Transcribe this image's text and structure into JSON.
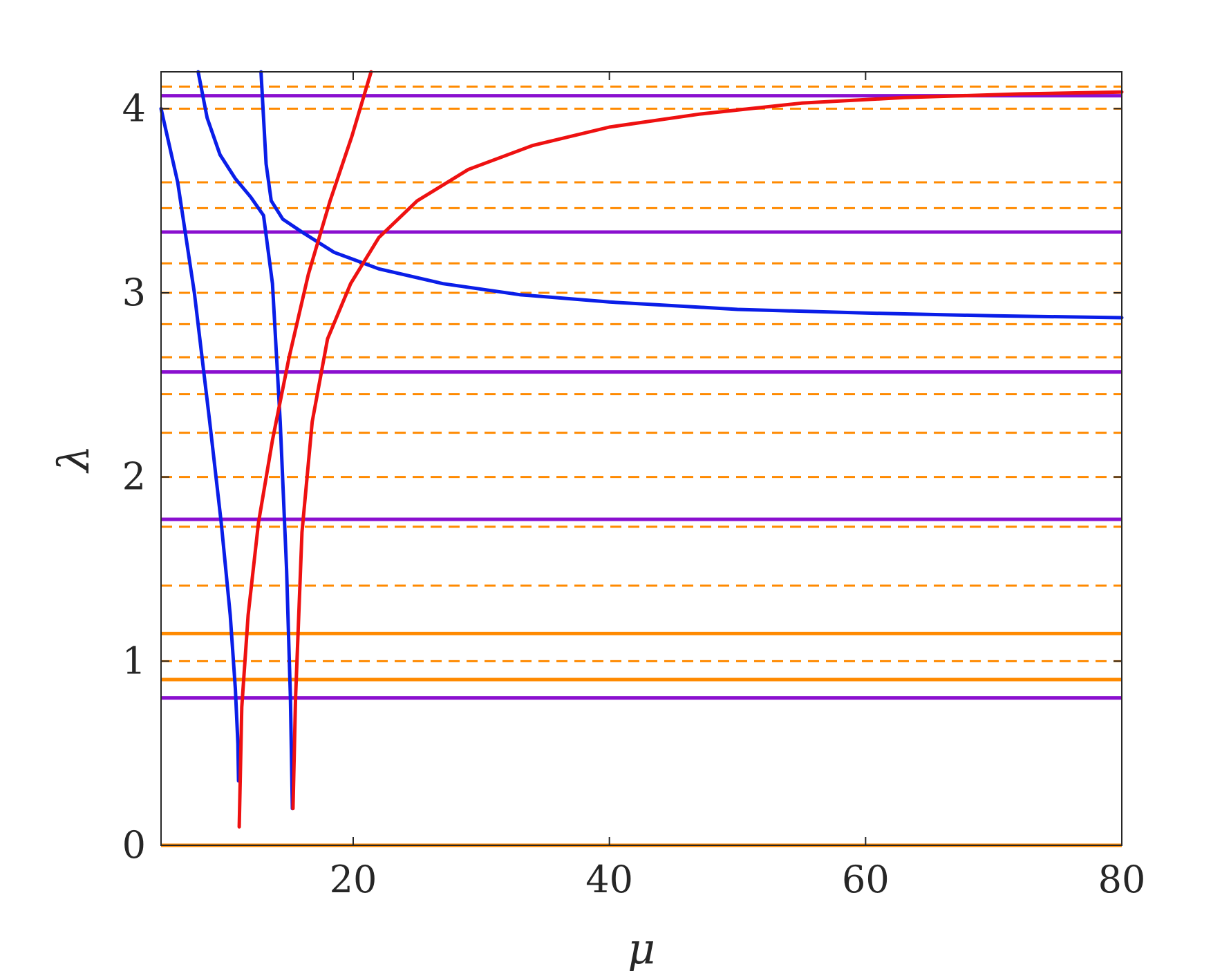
{
  "chart_data": {
    "type": "line",
    "title": "",
    "xlabel": "μ",
    "ylabel": "λ",
    "xlim": [
      5,
      80
    ],
    "ylim": [
      0,
      4.2
    ],
    "xticks": [
      20,
      40,
      60,
      80
    ],
    "xtick_labels": [
      "20",
      "40",
      "60",
      "80"
    ],
    "yticks": [
      0,
      1,
      2,
      3,
      4
    ],
    "ytick_labels": [
      "0",
      "1",
      "2",
      "3",
      "4"
    ],
    "grid": false,
    "legend": "none",
    "colors": {
      "blue": "#0a1ee8",
      "red": "#ee1111",
      "purple": "#8a0fcf",
      "orange": "#ff8a00",
      "axis": "#262626"
    },
    "hlines": [
      {
        "y": 0.0,
        "color": "orange",
        "style": "solid"
      },
      {
        "y": 0.8,
        "color": "purple",
        "style": "solid"
      },
      {
        "y": 0.9,
        "color": "orange",
        "style": "solid"
      },
      {
        "y": 1.0,
        "color": "orange",
        "style": "dashed"
      },
      {
        "y": 1.15,
        "color": "orange",
        "style": "solid"
      },
      {
        "y": 1.41,
        "color": "orange",
        "style": "dashed"
      },
      {
        "y": 1.73,
        "color": "orange",
        "style": "dashed"
      },
      {
        "y": 1.77,
        "color": "purple",
        "style": "solid"
      },
      {
        "y": 2.0,
        "color": "orange",
        "style": "dashed"
      },
      {
        "y": 2.24,
        "color": "orange",
        "style": "dashed"
      },
      {
        "y": 2.45,
        "color": "orange",
        "style": "dashed"
      },
      {
        "y": 2.57,
        "color": "purple",
        "style": "solid"
      },
      {
        "y": 2.65,
        "color": "orange",
        "style": "dashed"
      },
      {
        "y": 2.83,
        "color": "orange",
        "style": "dashed"
      },
      {
        "y": 3.0,
        "color": "orange",
        "style": "dashed"
      },
      {
        "y": 3.16,
        "color": "orange",
        "style": "dashed"
      },
      {
        "y": 3.33,
        "color": "purple",
        "style": "solid"
      },
      {
        "y": 3.46,
        "color": "orange",
        "style": "dashed"
      },
      {
        "y": 3.6,
        "color": "orange",
        "style": "dashed"
      },
      {
        "y": 4.0,
        "color": "orange",
        "style": "dashed"
      },
      {
        "y": 4.07,
        "color": "purple",
        "style": "solid"
      },
      {
        "y": 4.12,
        "color": "orange",
        "style": "dashed"
      }
    ],
    "series": [
      {
        "color": "blue",
        "x": [
          5,
          6.3,
          7.6,
          8.8,
          9.7,
          10.4,
          10.8,
          11.0,
          11.05
        ],
        "y": [
          4.0,
          3.6,
          3.0,
          2.3,
          1.75,
          1.25,
          0.85,
          0.55,
          0.35
        ]
      },
      {
        "color": "blue",
        "x": [
          7.9,
          8.6,
          9.6,
          10.8,
          12.0,
          13.0,
          13.7,
          14.3,
          14.8,
          15.1,
          15.25
        ],
        "y": [
          4.2,
          3.95,
          3.75,
          3.62,
          3.52,
          3.42,
          3.05,
          2.3,
          1.5,
          0.8,
          0.2
        ]
      },
      {
        "color": "blue",
        "x": [
          12.8,
          13.0,
          13.2,
          13.6,
          14.5,
          16.0,
          18.5,
          22,
          27,
          33,
          40,
          50,
          60,
          70,
          80
        ],
        "y": [
          4.2,
          3.95,
          3.7,
          3.5,
          3.4,
          3.33,
          3.22,
          3.13,
          3.05,
          2.99,
          2.95,
          2.91,
          2.89,
          2.875,
          2.865
        ]
      },
      {
        "color": "red",
        "x": [
          11.1,
          11.3,
          11.8,
          12.6,
          13.7,
          15.0,
          16.5,
          18.2,
          19.9,
          21.4
        ],
        "y": [
          0.1,
          0.75,
          1.25,
          1.75,
          2.2,
          2.65,
          3.1,
          3.5,
          3.85,
          4.2
        ]
      },
      {
        "color": "red",
        "x": [
          15.3,
          15.5,
          16.0,
          16.8,
          18.0,
          19.8,
          22,
          25,
          29,
          34,
          40,
          47,
          55,
          63,
          72,
          80
        ],
        "y": [
          0.2,
          0.8,
          1.7,
          2.3,
          2.75,
          3.05,
          3.3,
          3.5,
          3.67,
          3.8,
          3.9,
          3.97,
          4.03,
          4.06,
          4.08,
          4.09
        ]
      }
    ]
  }
}
